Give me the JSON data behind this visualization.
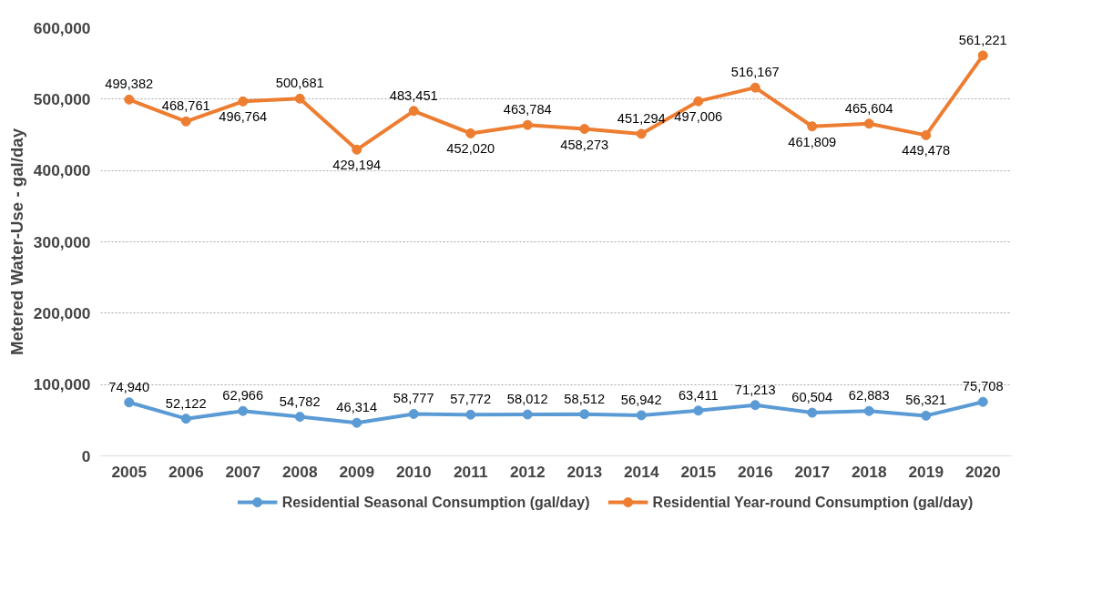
{
  "chart_data": {
    "type": "line",
    "ylabel": "Metered Water-Use - gal/day",
    "categories": [
      "2005",
      "2006",
      "2007",
      "2008",
      "2009",
      "2010",
      "2011",
      "2012",
      "2013",
      "2014",
      "2015",
      "2016",
      "2017",
      "2018",
      "2019",
      "2020"
    ],
    "series": [
      {
        "name": "Residential Seasonal Consumption (gal/day)",
        "color": "#5b9bd5",
        "values": [
          74940,
          52122,
          62966,
          54782,
          46314,
          58777,
          57772,
          58012,
          58512,
          56942,
          63411,
          71213,
          60504,
          62883,
          56321,
          75708
        ],
        "value_labels": [
          "74,940",
          "52,122",
          "62,966",
          "54,782",
          "46,314",
          "58,777",
          "57,772",
          "58,012",
          "58,512",
          "56,942",
          "63,411",
          "71,213",
          "60,504",
          "62,883",
          "56,321",
          "75,708"
        ]
      },
      {
        "name": "Residential Year-round Consumption (gal/day)",
        "color": "#ed7d31",
        "values": [
          499382,
          468761,
          496764,
          500681,
          429194,
          483451,
          452020,
          463784,
          458273,
          451294,
          497006,
          516167,
          461809,
          465604,
          449478,
          561221
        ],
        "value_labels": [
          "499,382",
          "468,761",
          "496,764",
          "500,681",
          "429,194",
          "483,451",
          "452,020",
          "463,784",
          "458,273",
          "451,294",
          "497,006",
          "516,167",
          "461,809",
          "465,604",
          "449,478",
          "561,221"
        ]
      }
    ],
    "ylim": [
      0,
      600000
    ],
    "yticks": [
      {
        "value": 0,
        "label": "0"
      },
      {
        "value": 100000,
        "label": "100,000"
      },
      {
        "value": 200000,
        "label": "200,000"
      },
      {
        "value": 300000,
        "label": "300,000"
      },
      {
        "value": 400000,
        "label": "400,000"
      },
      {
        "value": 500000,
        "label": "500,000"
      },
      {
        "value": 600000,
        "label": "600,000"
      }
    ],
    "grid": "y",
    "legend": "bottom",
    "marker": "circle",
    "line_style": "solid"
  }
}
